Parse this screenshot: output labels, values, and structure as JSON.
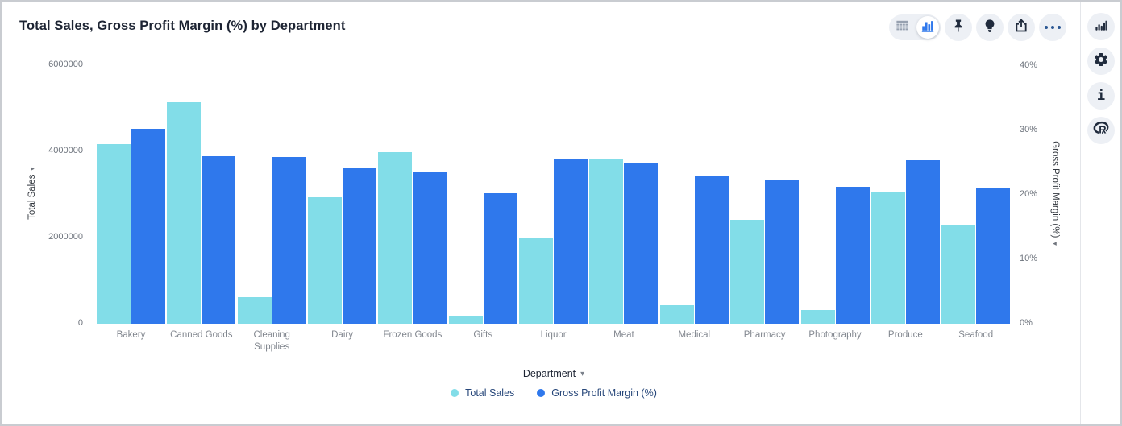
{
  "header": {
    "title": "Total Sales, Gross Profit Margin (%) by Department"
  },
  "toolbar": {
    "view_toggle": {
      "options": [
        "table-view",
        "chart-view"
      ],
      "selected": "chart-view"
    },
    "actions": [
      "pin",
      "insights-bulb",
      "share-export",
      "more-options"
    ]
  },
  "right_rail": {
    "actions": [
      "chart-config",
      "settings",
      "info",
      "r-analysis"
    ]
  },
  "glyphs": {
    "dropdown_arrow": "▾",
    "left_axis_arrow": "▸",
    "right_axis_arrow": "◂",
    "info": "i"
  },
  "colors": {
    "series_total_sales": "#82DDE8",
    "series_gross_profit_margin": "#2F78EC",
    "icon_dark": "#202b3d",
    "icon_blue_accent": "#2b5793",
    "circle_bg": "#edf0f5"
  },
  "chart_data": {
    "type": "bar",
    "title": "Total Sales, Gross Profit Margin (%) by Department",
    "xlabel": "Department",
    "grid": false,
    "legend_position": "bottom",
    "categories": [
      "Bakery",
      "Canned Goods",
      "Cleaning Supplies",
      "Dairy",
      "Frozen Goods",
      "Gifts",
      "Liquor",
      "Meat",
      "Medical",
      "Pharmacy",
      "Photography",
      "Produce",
      "Seafood"
    ],
    "series": [
      {
        "name": "Total Sales",
        "axis": "left",
        "color": "#82DDE8",
        "values": [
          4170000,
          5140000,
          620000,
          2930000,
          3980000,
          160000,
          1990000,
          3810000,
          430000,
          2410000,
          320000,
          3070000,
          2280000
        ]
      },
      {
        "name": "Gross Profit Margin (%)",
        "axis": "right",
        "color": "#2F78EC",
        "values": [
          30.2,
          26.0,
          25.9,
          24.2,
          23.6,
          20.2,
          25.5,
          24.9,
          23.0,
          22.4,
          21.2,
          25.4,
          21.0
        ]
      }
    ],
    "left_axis": {
      "title": "Total Sales",
      "min": 0,
      "max": 6000000,
      "ticks": [
        "0",
        "2000000",
        "4000000",
        "6000000"
      ]
    },
    "right_axis": {
      "title": "Gross Profit Margin (%)",
      "min": 0,
      "max": 40,
      "ticks": [
        "0%",
        "10%",
        "20%",
        "30%",
        "40%"
      ]
    },
    "legend": [
      {
        "label": "Total Sales",
        "color": "#82DDE8"
      },
      {
        "label": "Gross Profit Margin (%)",
        "color": "#2F78EC"
      }
    ]
  }
}
